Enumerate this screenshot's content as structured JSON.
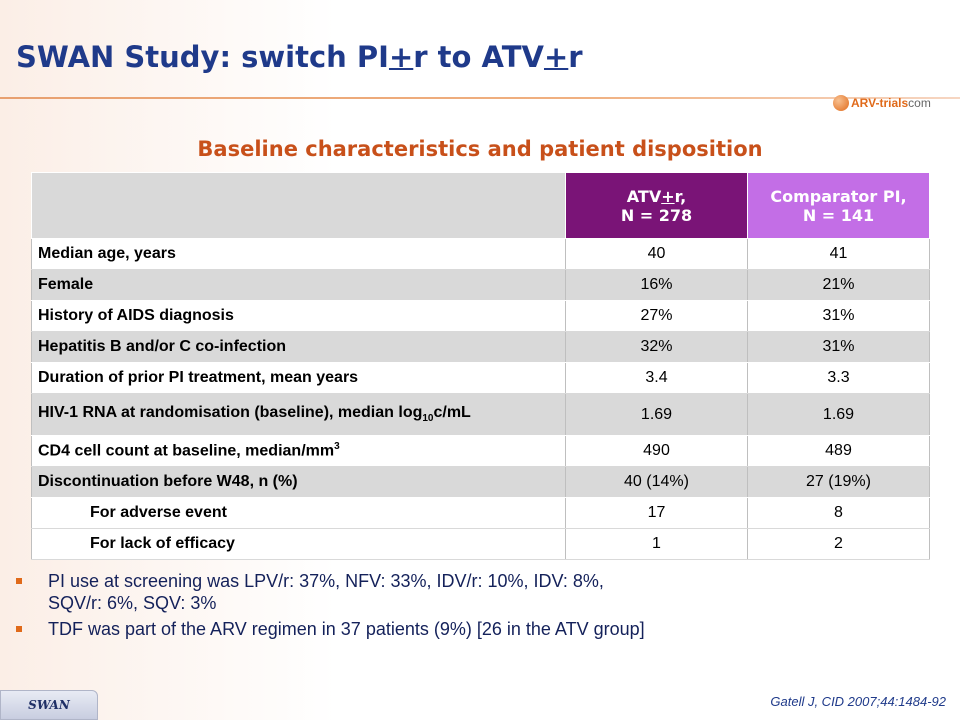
{
  "title": {
    "prefix": "SWAN Study: switch PI",
    "plus1": "+",
    "mid": "r to ATV",
    "plus2": "+",
    "suffix": "r"
  },
  "logo": {
    "brand": "ARV-trials",
    "domain": "com"
  },
  "subtitle": "Baseline characteristics and patient disposition",
  "table": {
    "header": {
      "atv_line1_a": "ATV",
      "atv_line1_plus": "+",
      "atv_line1_b": "r,",
      "atv_line2": "N = 278",
      "comp_line1": "Comparator PI,",
      "comp_line2": "N = 141"
    },
    "rows": [
      {
        "label": "Median age, years",
        "atv": "40",
        "comp": "41"
      },
      {
        "label": "Female",
        "atv": "16%",
        "comp": "21%"
      },
      {
        "label": "History of AIDS diagnosis",
        "atv": "27%",
        "comp": "31%"
      },
      {
        "label": "Hepatitis B and/or C co-infection",
        "atv": "32%",
        "comp": "31%"
      },
      {
        "label": "Duration of prior PI treatment, mean years",
        "atv": "3.4",
        "comp": "3.3"
      },
      {
        "label_a": "HIV-1 RNA at randomisation (baseline), median log",
        "label_sub": "10",
        "label_b": "c/mL",
        "atv": "1.69",
        "comp": "1.69"
      },
      {
        "label_a": "CD4 cell count at baseline, median/mm",
        "label_sup": "3",
        "atv": "490",
        "comp": "489"
      },
      {
        "label": "Discontinuation before W48, n (%)",
        "atv": "40 (14%)",
        "comp": "27 (19%)"
      },
      {
        "label": "For adverse event",
        "atv": "17",
        "comp": "8"
      },
      {
        "label": "For lack of efficacy",
        "atv": "1",
        "comp": "2"
      }
    ]
  },
  "bullets": [
    {
      "line1": "PI use at screening was LPV/r: 37%, NFV: 33%, IDV/r: 10%, IDV: 8%,",
      "line2": "SQV/r: 6%, SQV: 3%"
    },
    {
      "line1": "TDF was part of the ARV regimen in 37 patients (9%) [26 in the ATV group]"
    }
  ],
  "footer": {
    "tab": "SWAN",
    "citation": "Gatell J, CID 2007;44:1484-92"
  },
  "colors": {
    "title": "#1f3a8a",
    "subtitle": "#c8501a",
    "atv_header": "#7a1477",
    "comp_header": "#c36ee6",
    "bullet": "#e06a1a"
  }
}
